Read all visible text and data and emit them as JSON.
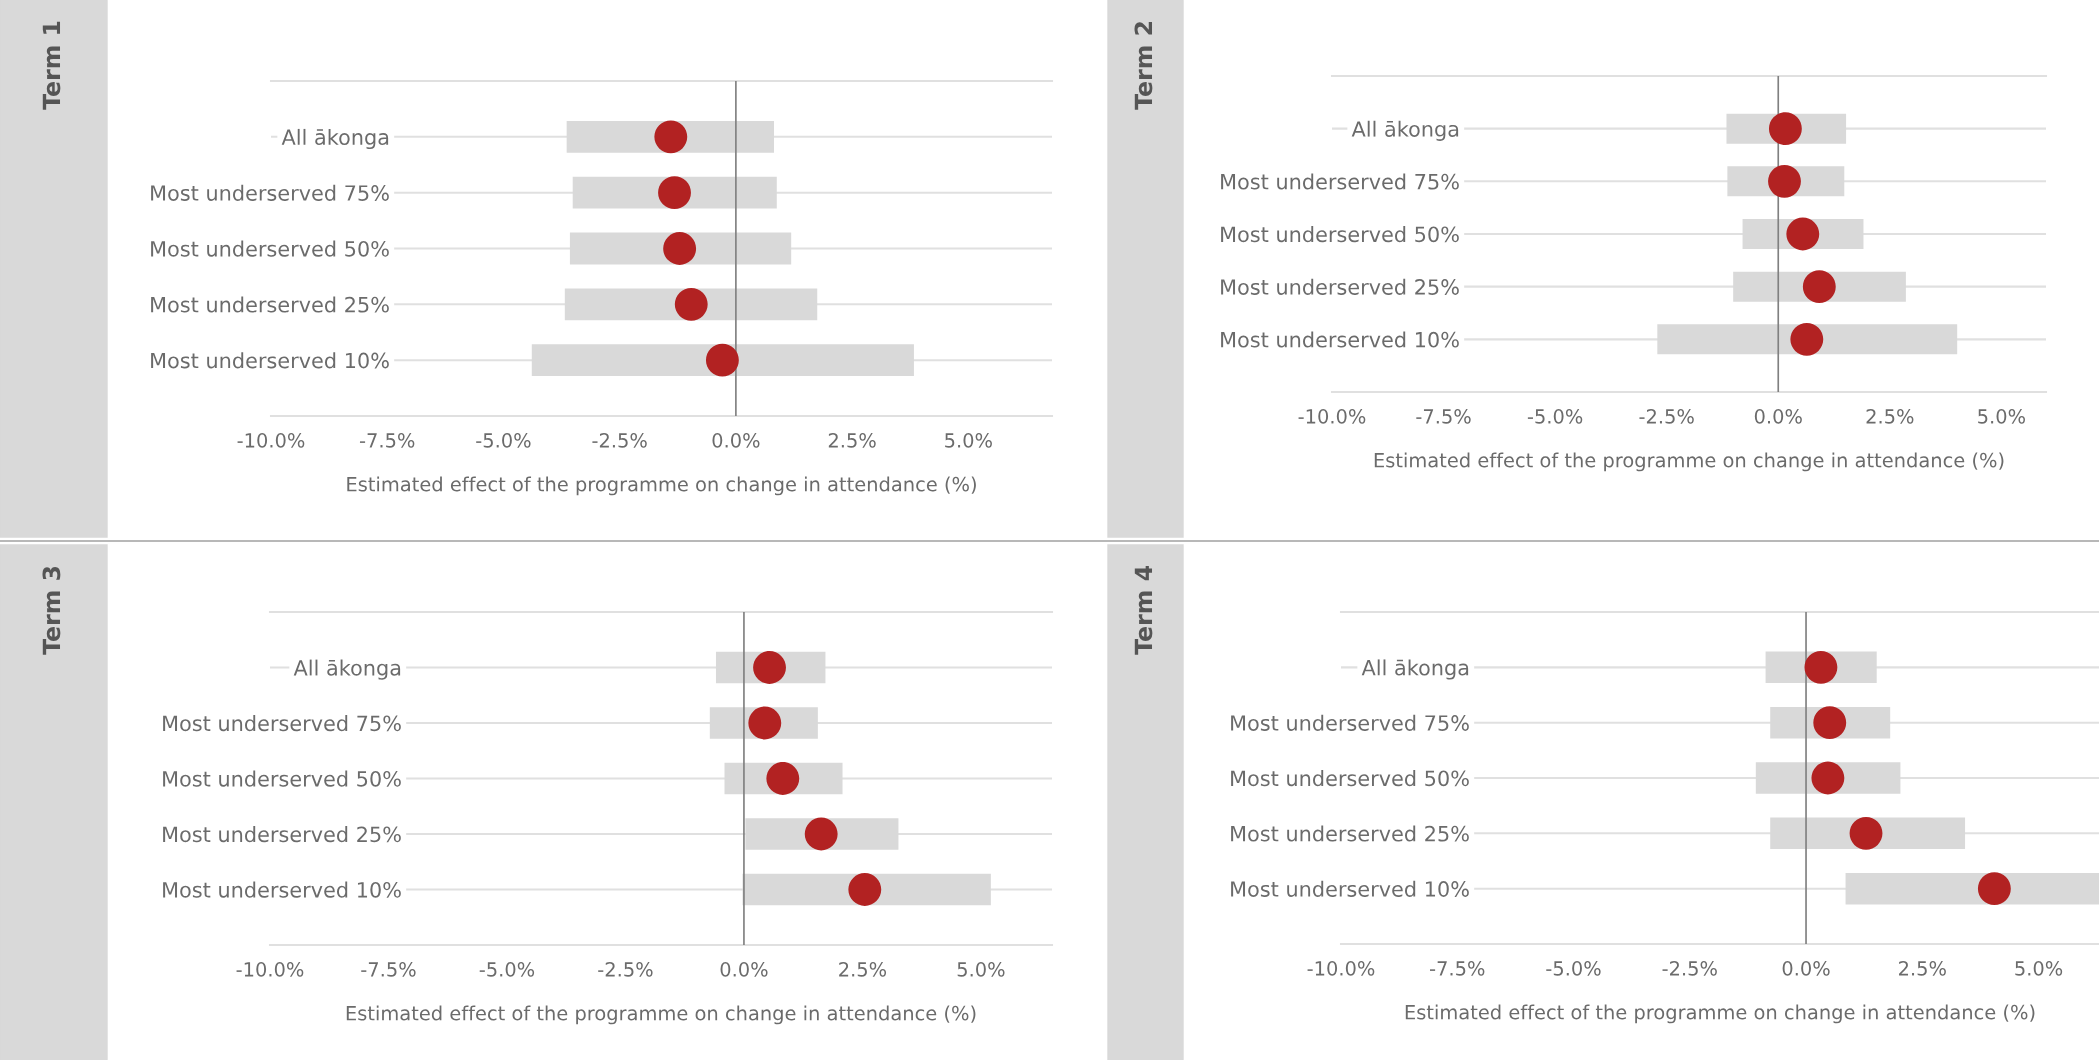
{
  "chart_data": [
    {
      "type": "bar",
      "orientation": "horizontal",
      "title": "Term 1",
      "xlabel": "Estimated effect of the programme on change in attendance (%)",
      "categories": [
        "All ākonga",
        "Most underserved 75%",
        "Most underserved 50%",
        "Most underserved 25%",
        "Most underserved 10%"
      ],
      "series": [
        {
          "color": "#d9d9d9",
          "base": [
            -3.64,
            -3.51,
            -3.57,
            -3.68,
            -4.39
          ],
          "values": [
            4.46,
            4.39,
            4.76,
            5.43,
            8.22
          ]
        },
        {
          "type": "scatter",
          "color": "#b22222",
          "values": [
            -1.4,
            -1.32,
            -1.21,
            -0.96,
            -0.29
          ]
        }
      ],
      "marker": "circle",
      "xlim": [
        -10,
        6.8
      ],
      "xticks": [
        {
          "value": -10,
          "label": "-10.0%"
        },
        {
          "value": -7.5,
          "label": "-7.5%"
        },
        {
          "value": -5,
          "label": "-5.0%"
        },
        {
          "value": -2.5,
          "label": "-2.5%"
        },
        {
          "value": 0,
          "label": "0.0%"
        },
        {
          "value": 2.5,
          "label": "2.5%"
        },
        {
          "value": 5,
          "label": "5.0%"
        }
      ],
      "grid": "y",
      "ref_lines": [
        {
          "axis": "x",
          "value": 0,
          "color": "#808080"
        }
      ]
    },
    {
      "type": "bar",
      "orientation": "horizontal",
      "title": "Term 2",
      "xlabel": "Estimated effect of the programme on change in attendance (%)",
      "categories": [
        "All ākonga",
        "Most underserved 75%",
        "Most underserved 50%",
        "Most underserved 25%",
        "Most underserved 10%"
      ],
      "series": [
        {
          "color": "#d9d9d9",
          "base": [
            -1.16,
            -1.14,
            -0.8,
            -1.01,
            -2.71
          ],
          "values": [
            2.68,
            2.62,
            2.71,
            3.87,
            6.72
          ]
        },
        {
          "type": "scatter",
          "color": "#b22222",
          "values": [
            0.16,
            0.14,
            0.55,
            0.92,
            0.64
          ]
        }
      ],
      "marker": "circle",
      "xlim": [
        -10,
        6.0
      ],
      "xticks": [
        {
          "value": -10,
          "label": "-10.0%"
        },
        {
          "value": -7.5,
          "label": "-7.5%"
        },
        {
          "value": -5,
          "label": "-5.0%"
        },
        {
          "value": -2.5,
          "label": "-2.5%"
        },
        {
          "value": 0,
          "label": "0.0%"
        },
        {
          "value": 2.5,
          "label": "2.5%"
        },
        {
          "value": 5,
          "label": "5.0%"
        }
      ],
      "grid": "y",
      "ref_lines": [
        {
          "axis": "x",
          "value": 0,
          "color": "#808080"
        }
      ]
    },
    {
      "type": "bar",
      "orientation": "horizontal",
      "title": "Term 3",
      "xlabel": "Estimated effect of the programme on change in attendance (%)",
      "categories": [
        "All ākonga",
        "Most underserved 75%",
        "Most underserved 50%",
        "Most underserved 25%",
        "Most underserved 10%"
      ],
      "series": [
        {
          "color": "#d9d9d9",
          "base": [
            -0.59,
            -0.72,
            -0.41,
            0.03,
            -0.03
          ],
          "values": [
            2.31,
            2.28,
            2.49,
            3.23,
            5.24
          ]
        },
        {
          "type": "scatter",
          "color": "#b22222",
          "values": [
            0.54,
            0.44,
            0.82,
            1.63,
            2.55
          ]
        }
      ],
      "marker": "circle",
      "xlim": [
        -10,
        6.5
      ],
      "xticks": [
        {
          "value": -10,
          "label": "-10.0%"
        },
        {
          "value": -7.5,
          "label": "-7.5%"
        },
        {
          "value": -5,
          "label": "-5.0%"
        },
        {
          "value": -2.5,
          "label": "-2.5%"
        },
        {
          "value": 0,
          "label": "0.0%"
        },
        {
          "value": 2.5,
          "label": "2.5%"
        },
        {
          "value": 5,
          "label": "5.0%"
        }
      ],
      "grid": "y",
      "ref_lines": [
        {
          "axis": "x",
          "value": 0,
          "color": "#808080"
        }
      ]
    },
    {
      "type": "bar",
      "orientation": "horizontal",
      "title": "Term 4",
      "xlabel": "Estimated effect of the programme on change in attendance (%)",
      "categories": [
        "All ākonga",
        "Most underserved 75%",
        "Most underserved 50%",
        "Most underserved 25%",
        "Most underserved 10%"
      ],
      "series": [
        {
          "color": "#d9d9d9",
          "base": [
            -0.87,
            -0.77,
            -1.08,
            -0.77,
            0.85
          ],
          "values": [
            2.39,
            2.58,
            3.11,
            4.19,
            5.45
          ]
        },
        {
          "type": "scatter",
          "color": "#b22222",
          "values": [
            0.32,
            0.51,
            0.47,
            1.29,
            4.05
          ]
        }
      ],
      "marker": "circle",
      "xlim": [
        -10,
        6.3
      ],
      "xticks": [
        {
          "value": -10,
          "label": "-10.0%"
        },
        {
          "value": -7.5,
          "label": "-7.5%"
        },
        {
          "value": -5,
          "label": "-5.0%"
        },
        {
          "value": -2.5,
          "label": "-2.5%"
        },
        {
          "value": 0,
          "label": "0.0%"
        },
        {
          "value": 2.5,
          "label": "2.5%"
        },
        {
          "value": 5,
          "label": "5.0%"
        }
      ],
      "grid": "y",
      "ref_lines": [
        {
          "axis": "x",
          "value": 0,
          "color": "#808080"
        }
      ]
    }
  ]
}
